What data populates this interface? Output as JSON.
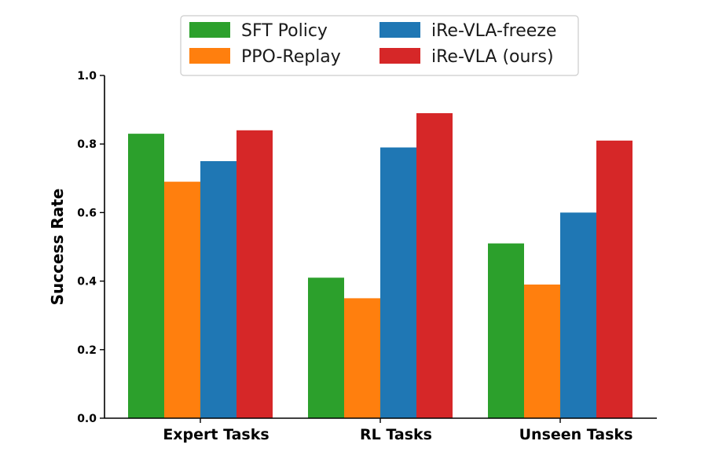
{
  "chart_data": {
    "type": "bar",
    "title": "",
    "xlabel": "",
    "ylabel": "Success Rate",
    "ylim": [
      0,
      1.0
    ],
    "yticks": [
      "0.0",
      "0.2",
      "0.4",
      "0.6",
      "0.8",
      "1.0"
    ],
    "categories": [
      "Expert Tasks",
      "RL Tasks",
      "Unseen Tasks"
    ],
    "series": [
      {
        "name": "SFT Policy",
        "color": "#2ca02c",
        "values": [
          0.83,
          0.41,
          0.51
        ]
      },
      {
        "name": "PPO-Replay",
        "color": "#ff7f0e",
        "values": [
          0.69,
          0.35,
          0.39
        ]
      },
      {
        "name": "iRe-VLA-freeze",
        "color": "#1f77b4",
        "values": [
          0.75,
          0.79,
          0.6
        ]
      },
      {
        "name": "iRe-VLA (ours)",
        "color": "#d62728",
        "values": [
          0.84,
          0.89,
          0.81
        ]
      }
    ],
    "legend": {
      "position": "top-center",
      "columns": 2
    },
    "grid": false
  }
}
